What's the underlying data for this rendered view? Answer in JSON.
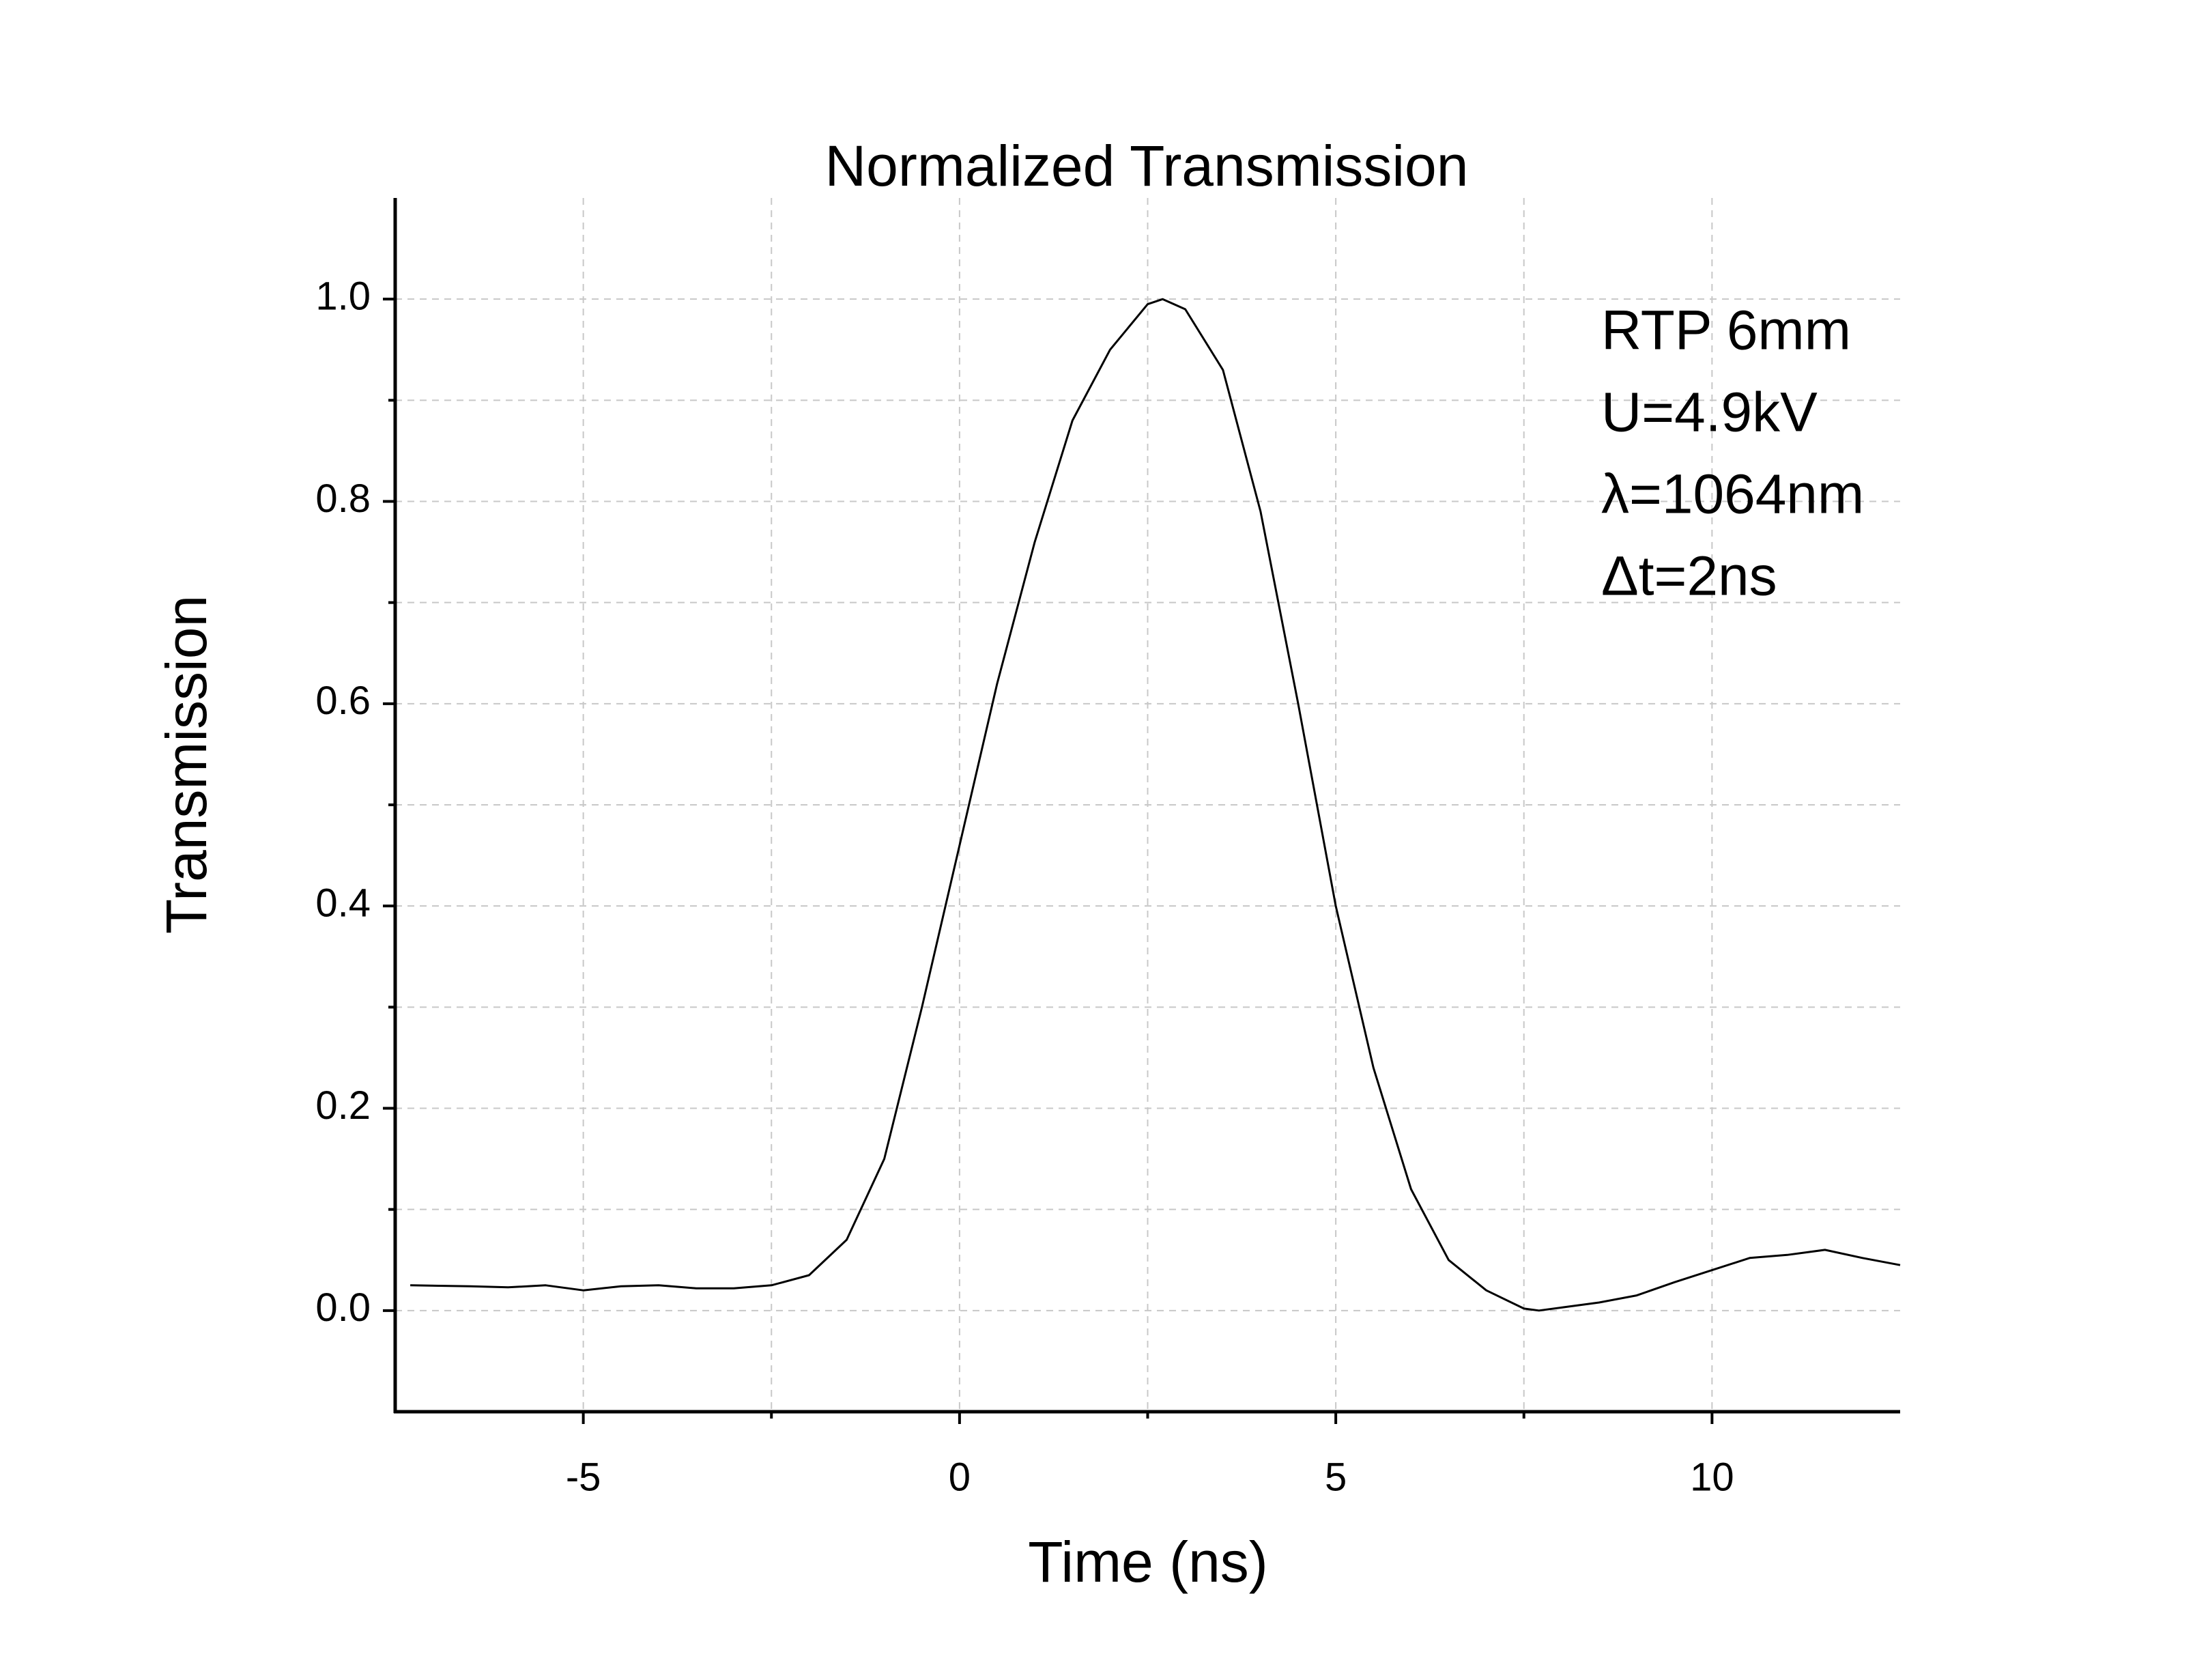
{
  "chart_data": {
    "type": "line",
    "title": "Normalized Transmission",
    "x_label": "Time (ns)",
    "y_label": "Transmission",
    "annotations": [
      "RTP 6mm",
      "U=4.9kV",
      "λ=1064nm",
      "Δt=2ns"
    ],
    "x": [
      -7.3,
      -6.5,
      -6,
      -5.5,
      -5,
      -4.5,
      -4,
      -3.5,
      -3,
      -2.5,
      -2,
      -1.5,
      -1,
      -0.5,
      0,
      0.5,
      1,
      1.5,
      2,
      2.5,
      2.7,
      3,
      3.5,
      4,
      4.5,
      5,
      5.5,
      6,
      6.5,
      7,
      7.5,
      7.7,
      8,
      8.5,
      9,
      9.5,
      10,
      10.5,
      11,
      11.5,
      12,
      12.5
    ],
    "series": [
      {
        "name": "Transmission",
        "color": "#000000",
        "values": [
          0.025,
          0.024,
          0.023,
          0.025,
          0.02,
          0.024,
          0.025,
          0.022,
          0.022,
          0.025,
          0.035,
          0.07,
          0.15,
          0.3,
          0.46,
          0.62,
          0.76,
          0.88,
          0.95,
          0.995,
          1.0,
          0.99,
          0.93,
          0.79,
          0.6,
          0.4,
          0.24,
          0.12,
          0.05,
          0.02,
          0.002,
          0.0,
          0.003,
          0.008,
          0.015,
          0.028,
          0.04,
          0.052,
          0.055,
          0.06,
          0.052,
          0.045
        ]
      }
    ],
    "xlim": [
      -7.5,
      12.5
    ],
    "ylim": [
      -0.1,
      1.1
    ],
    "xticks": [
      -5,
      0,
      5,
      10
    ],
    "xminorticks": [
      -2.5,
      2.5,
      7.5
    ],
    "yticks": [
      {
        "value": 0,
        "label": "0.0"
      },
      0.2,
      0.4,
      0.6,
      0.8,
      {
        "value": 1,
        "label": "1.0"
      }
    ],
    "yminorticks": [
      0.1,
      0.3,
      0.5,
      0.7,
      0.9
    ],
    "grid": true
  }
}
